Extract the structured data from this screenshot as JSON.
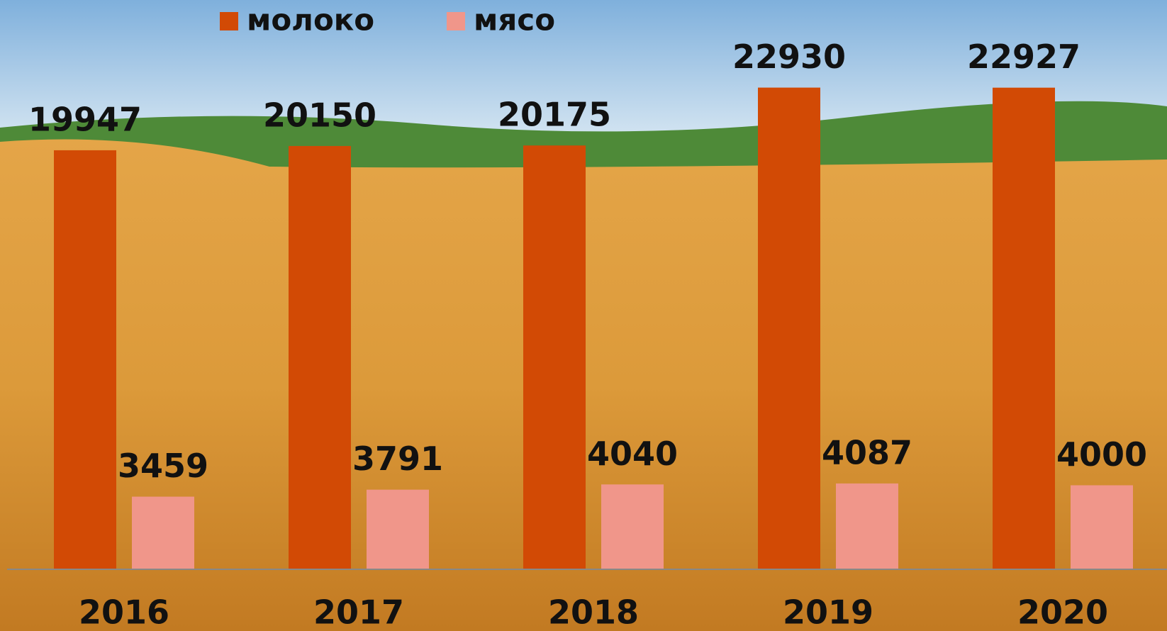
{
  "chart_data": {
    "type": "bar",
    "categories": [
      "2016",
      "2017",
      "2018",
      "2019",
      "2020"
    ],
    "series": [
      {
        "name": "молоко",
        "color": "#d24a05",
        "values": [
          19947,
          20150,
          20175,
          22930,
          22927
        ]
      },
      {
        "name": "мясо",
        "color": "#f0968a",
        "values": [
          3459,
          3791,
          4040,
          4087,
          4000
        ]
      }
    ],
    "ylim": [
      0,
      27100
    ],
    "legend": "top"
  }
}
